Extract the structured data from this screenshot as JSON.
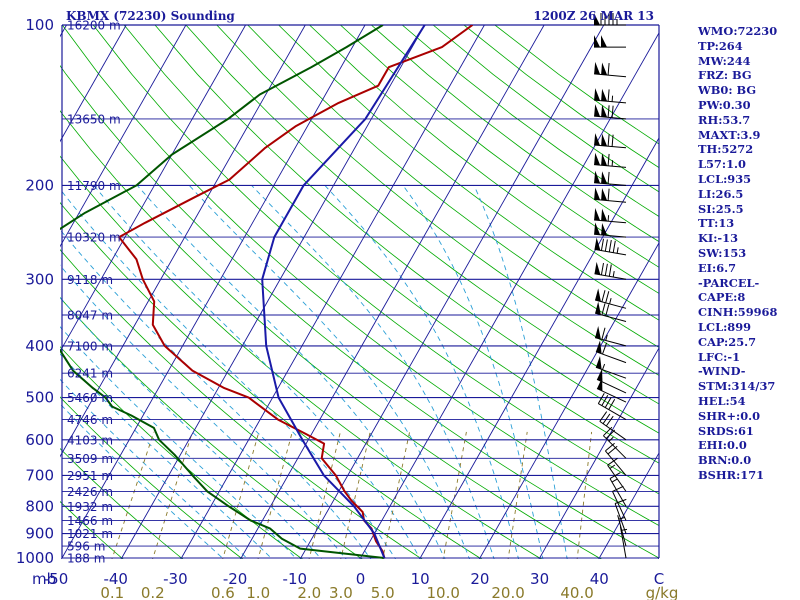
{
  "header": {
    "station": "KBMX (72230) Sounding",
    "time": "1200Z 26 MAR 13"
  },
  "indices": [
    "WMO:72230",
    "TP:264",
    "MW:244",
    "FRZ: BG",
    "WB0: BG",
    "PW:0.30",
    "RH:53.7",
    "MAXT:3.9",
    "TH:5272",
    "L57:1.0",
    "LCL:935",
    "LI:26.5",
    "SI:25.5",
    "TT:13",
    "KI:-13",
    "SW:153",
    "EI:6.7",
    "-PARCEL-",
    "CAPE:8",
    "CINH:59968",
    "LCL:899",
    "CAP:25.7",
    "LFC:-1",
    "-WIND-",
    "STM:314/37",
    "HEL:54",
    "SHR+:0.0",
    "SRDS:61",
    "EHI:0.0",
    "BRN:0.0",
    "BSHR:171"
  ],
  "chart_data": {
    "type": "line",
    "subtype": "skew-T log-P",
    "pressure_unit": "mb",
    "pressure_range": [
      1000,
      100
    ],
    "temperature_range": [
      -50,
      50
    ],
    "pressure_ticks": [
      100,
      200,
      300,
      400,
      500,
      600,
      700,
      800,
      900,
      1000
    ],
    "temperature_ticks": [
      -50,
      -40,
      -30,
      -20,
      -10,
      0,
      10,
      20,
      30,
      40
    ],
    "extra_temp_label": "C",
    "mixing_ratio_labels": [
      "0.1",
      "0.2",
      "0.6",
      "1.0",
      "2.0",
      "3.0",
      "5.0",
      "10.0",
      "20.0",
      "40.0"
    ],
    "mixing_ratio_unit": "g/kg",
    "heights": [
      {
        "p": 100,
        "label": "16200 m"
      },
      {
        "p": 150,
        "label": "13650 m"
      },
      {
        "p": 200,
        "label": "11790 m"
      },
      {
        "p": 250,
        "label": "10320 m"
      },
      {
        "p": 300,
        "label": "9118 m"
      },
      {
        "p": 350,
        "label": "8047 m"
      },
      {
        "p": 400,
        "label": "7100 m"
      },
      {
        "p": 450,
        "label": "6241 m"
      },
      {
        "p": 500,
        "label": "5460 m"
      },
      {
        "p": 550,
        "label": "4746 m"
      },
      {
        "p": 600,
        "label": "4103 m"
      },
      {
        "p": 650,
        "label": "3509 m"
      },
      {
        "p": 700,
        "label": "2951 m"
      },
      {
        "p": 750,
        "label": "2426 m"
      },
      {
        "p": 800,
        "label": "1932 m"
      },
      {
        "p": 850,
        "label": "1466 m"
      },
      {
        "p": 900,
        "label": "1021 m"
      },
      {
        "p": 950,
        "label": "596 m"
      },
      {
        "p": 1000,
        "label": "188 m"
      }
    ],
    "series": [
      {
        "color": "#aa0000",
        "points": [
          [
            100,
            -32
          ],
          [
            110,
            -35
          ],
          [
            120,
            -42
          ],
          [
            130,
            -42
          ],
          [
            140,
            -47
          ],
          [
            155,
            -52
          ],
          [
            170,
            -55
          ],
          [
            195,
            -58
          ],
          [
            210,
            -62
          ],
          [
            235,
            -68
          ],
          [
            250,
            -71
          ],
          [
            275,
            -66
          ],
          [
            300,
            -63
          ],
          [
            330,
            -59
          ],
          [
            365,
            -57
          ],
          [
            400,
            -53
          ],
          [
            445,
            -46
          ],
          [
            480,
            -39
          ],
          [
            500,
            -34
          ],
          [
            550,
            -27
          ],
          [
            585,
            -21
          ],
          [
            610,
            -17
          ],
          [
            650,
            -16
          ],
          [
            700,
            -12
          ],
          [
            750,
            -9
          ],
          [
            780,
            -7
          ],
          [
            820,
            -4
          ],
          [
            850,
            -3
          ],
          [
            880,
            -1
          ],
          [
            930,
            1
          ],
          [
            970,
            3
          ],
          [
            1000,
            4
          ]
        ]
      },
      {
        "color": "#005500",
        "points": [
          [
            100,
            -47
          ],
          [
            110,
            -51
          ],
          [
            120,
            -55
          ],
          [
            135,
            -61
          ],
          [
            150,
            -64
          ],
          [
            175,
            -70
          ],
          [
            200,
            -73
          ],
          [
            225,
            -79
          ],
          [
            250,
            -83
          ],
          [
            270,
            -82
          ],
          [
            300,
            -79
          ],
          [
            330,
            -76
          ],
          [
            360,
            -74
          ],
          [
            400,
            -71
          ],
          [
            445,
            -66
          ],
          [
            480,
            -61
          ],
          [
            500,
            -58
          ],
          [
            520,
            -56
          ],
          [
            540,
            -52
          ],
          [
            570,
            -47
          ],
          [
            600,
            -45
          ],
          [
            640,
            -41
          ],
          [
            700,
            -36
          ],
          [
            750,
            -32
          ],
          [
            800,
            -27
          ],
          [
            850,
            -22
          ],
          [
            880,
            -18
          ],
          [
            920,
            -15
          ],
          [
            960,
            -11
          ],
          [
            1000,
            4
          ]
        ]
      },
      {
        "color": "#1a1aa8",
        "points": [
          [
            100,
            -40
          ],
          [
            150,
            -41
          ],
          [
            200,
            -45
          ],
          [
            250,
            -45
          ],
          [
            300,
            -43
          ],
          [
            400,
            -36
          ],
          [
            500,
            -29
          ],
          [
            600,
            -21
          ],
          [
            700,
            -14
          ],
          [
            800,
            -6
          ],
          [
            900,
            0
          ],
          [
            1000,
            4
          ]
        ]
      }
    ],
    "wind_barbs": [
      {
        "p": 100,
        "dir": 270,
        "kt": 95
      },
      {
        "p": 110,
        "dir": 270,
        "kt": 100
      },
      {
        "p": 125,
        "dir": 275,
        "kt": 110
      },
      {
        "p": 140,
        "dir": 275,
        "kt": 115
      },
      {
        "p": 150,
        "dir": 275,
        "kt": 120
      },
      {
        "p": 170,
        "dir": 275,
        "kt": 120
      },
      {
        "p": 185,
        "dir": 275,
        "kt": 115
      },
      {
        "p": 200,
        "dir": 275,
        "kt": 110
      },
      {
        "p": 215,
        "dir": 275,
        "kt": 110
      },
      {
        "p": 235,
        "dir": 275,
        "kt": 105
      },
      {
        "p": 250,
        "dir": 275,
        "kt": 100
      },
      {
        "p": 270,
        "dir": 280,
        "kt": 95
      },
      {
        "p": 300,
        "dir": 280,
        "kt": 85
      },
      {
        "p": 340,
        "dir": 285,
        "kt": 75
      },
      {
        "p": 360,
        "dir": 285,
        "kt": 70
      },
      {
        "p": 400,
        "dir": 285,
        "kt": 65
      },
      {
        "p": 430,
        "dir": 290,
        "kt": 60
      },
      {
        "p": 460,
        "dir": 290,
        "kt": 55
      },
      {
        "p": 490,
        "dir": 295,
        "kt": 50
      },
      {
        "p": 510,
        "dir": 295,
        "kt": 50
      },
      {
        "p": 550,
        "dir": 300,
        "kt": 40
      },
      {
        "p": 600,
        "dir": 305,
        "kt": 30
      },
      {
        "p": 650,
        "dir": 315,
        "kt": 25
      },
      {
        "p": 700,
        "dir": 320,
        "kt": 20
      },
      {
        "p": 750,
        "dir": 325,
        "kt": 15
      },
      {
        "p": 800,
        "dir": 330,
        "kt": 15
      },
      {
        "p": 850,
        "dir": 335,
        "kt": 10
      },
      {
        "p": 900,
        "dir": 340,
        "kt": 10
      },
      {
        "p": 950,
        "dir": 345,
        "kt": 5
      },
      {
        "p": 1000,
        "dir": 350,
        "kt": 5
      }
    ],
    "colors": {
      "isobar": "#1a1a99",
      "isotherm": "#1a1a99",
      "dry_adiabat": "#00aa00",
      "moist_adiabat": "#2a9fd6",
      "mixing_ratio": "#8a7a2a",
      "barb": "#000000"
    }
  }
}
